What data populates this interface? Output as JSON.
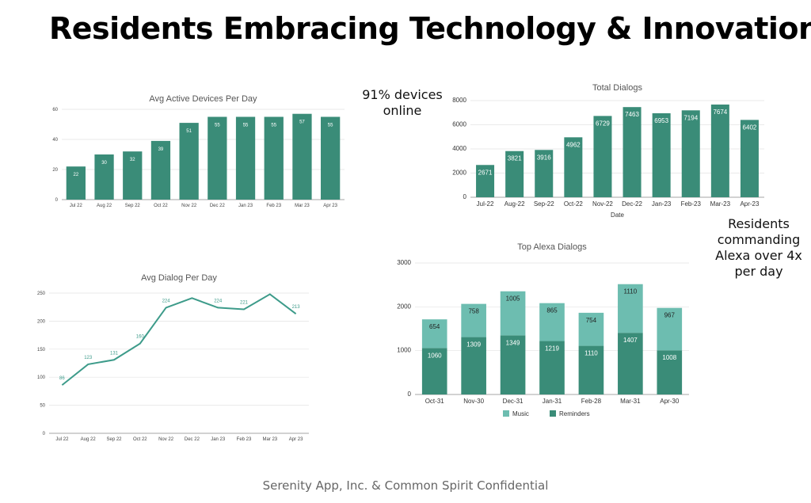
{
  "page": {
    "title": "Residents Embracing Technology & Innovation",
    "note_devices": "91% devices online",
    "note_alexa": "Residents commanding Alexa over 4x per day",
    "footer": "Serenity App, Inc. & Common Spirit Confidential"
  },
  "colors": {
    "teal": "#3a8c78",
    "teal_light": "#6dbdb0",
    "line": "#3d9b8a"
  },
  "chart_data": [
    {
      "id": "avg_active_devices",
      "type": "bar",
      "title": "Avg Active Devices Per Day",
      "categories": [
        "Jul 22",
        "Aug 22",
        "Sep 22",
        "Oct 22",
        "Nov 22",
        "Dec 22",
        "Jan 23",
        "Feb 23",
        "Mar 23",
        "Apr 23"
      ],
      "values": [
        22,
        30,
        32,
        39,
        51,
        55,
        55,
        55,
        57,
        55
      ],
      "value_labels": [
        "22",
        "30",
        "32",
        "39",
        "51",
        "55",
        "55",
        "55",
        "57",
        "55"
      ],
      "yticks": [
        0,
        20,
        40,
        60
      ],
      "ylim": [
        0,
        60
      ],
      "grid": true
    },
    {
      "id": "total_dialogs",
      "type": "bar",
      "title": "Total Dialogs",
      "xlabel": "Date",
      "categories": [
        "Jul-22",
        "Aug-22",
        "Sep-22",
        "Oct-22",
        "Nov-22",
        "Dec-22",
        "Jan-23",
        "Feb-23",
        "Mar-23",
        "Apr-23"
      ],
      "values": [
        2671,
        3821,
        3916,
        4962,
        6729,
        7463,
        6953,
        7194,
        7674,
        6402
      ],
      "value_labels": [
        "2671",
        "3821",
        "3916",
        "4962",
        "6729",
        "7463",
        "6953",
        "7194",
        "7674",
        "6402"
      ],
      "yticks": [
        0,
        2000,
        4000,
        6000,
        8000
      ],
      "ylim": [
        0,
        8000
      ],
      "grid": true
    },
    {
      "id": "avg_dialog_per_day",
      "type": "line",
      "title": "Avg Dialog Per Day",
      "categories": [
        "Jul 22",
        "Aug 22",
        "Sep 22",
        "Oct 22",
        "Nov 22",
        "Dec 22",
        "Jan 23",
        "Feb 23",
        "Mar 23",
        "Apr 23"
      ],
      "values": [
        86,
        123,
        131,
        160,
        224,
        241,
        224,
        221,
        248,
        213
      ],
      "value_labels": [
        "86",
        "123",
        "131",
        "160",
        "224",
        "",
        "224",
        "221",
        "",
        "213"
      ],
      "yticks": [
        0,
        50,
        100,
        150,
        200,
        250
      ],
      "ylim": [
        0,
        250
      ],
      "grid": true
    },
    {
      "id": "top_alexa_dialogs",
      "type": "bar",
      "stacked": true,
      "title": "Top Alexa Dialogs",
      "categories": [
        "Oct-31",
        "Nov-30",
        "Dec-31",
        "Jan-31",
        "Feb-28",
        "Mar-31",
        "Apr-30"
      ],
      "series": [
        {
          "name": "Reminders",
          "values": [
            1060,
            1309,
            1349,
            1219,
            1110,
            1407,
            1008
          ],
          "color": "#3a8c78"
        },
        {
          "name": "Music",
          "values": [
            654,
            758,
            1005,
            865,
            754,
            1110,
            967
          ],
          "color": "#6dbdb0"
        }
      ],
      "legend_order": [
        "Music",
        "Reminders"
      ],
      "yticks": [
        0,
        1000,
        2000,
        3000
      ],
      "ylim": [
        0,
        3000
      ],
      "legend": "bottom",
      "grid": true
    }
  ]
}
